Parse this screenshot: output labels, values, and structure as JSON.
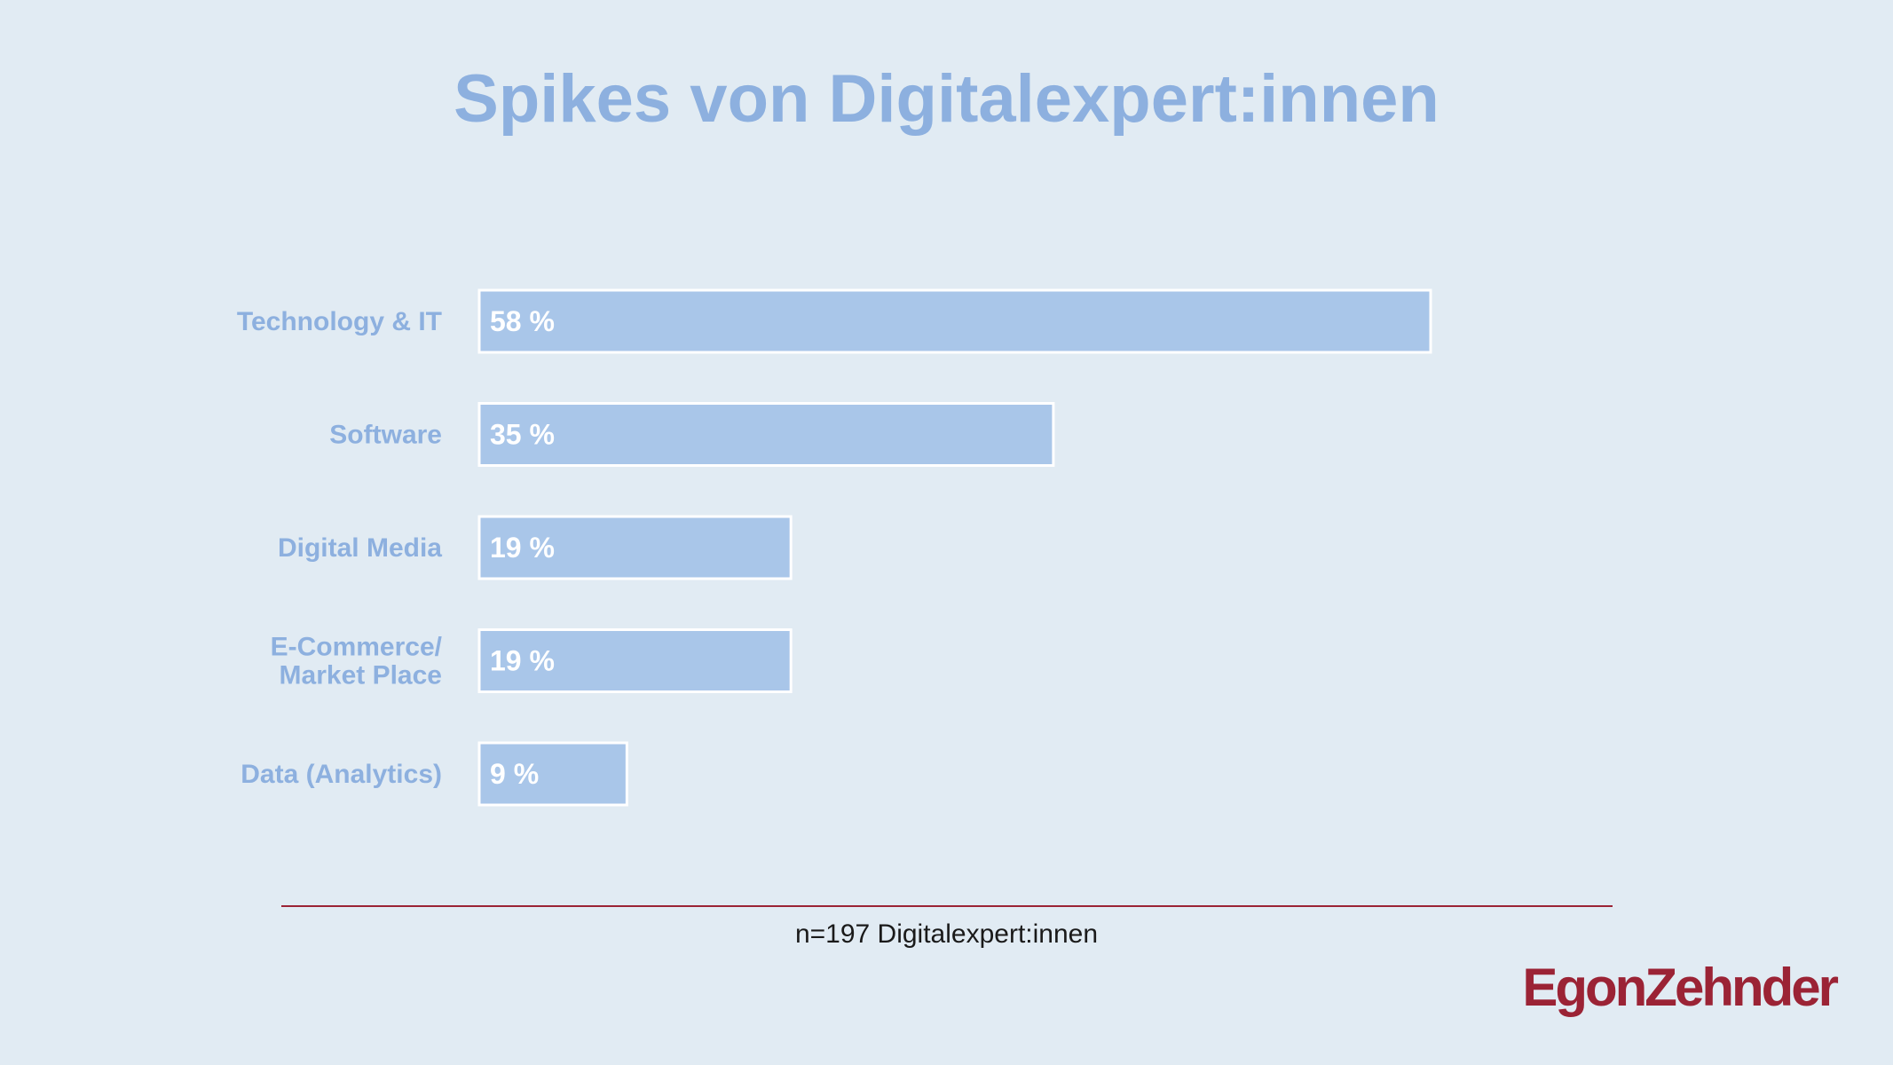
{
  "title": "Spikes von Digitalexpert:innen",
  "note": "n=197 Digitalexpert:innen",
  "logo_text": "EgonZehnder",
  "colors": {
    "background": "#e1ebf3",
    "bar_fill": "#a9c6e9",
    "bar_stroke": "#ffffff",
    "title": "#8db0df",
    "accent": "#9b2335"
  },
  "chart_data": {
    "type": "bar",
    "orientation": "horizontal",
    "title": "Spikes von Digitalexpert:innen",
    "categories": [
      [
        "Technology & IT"
      ],
      [
        "Software"
      ],
      [
        "Digital Media"
      ],
      [
        "E-Commerce/",
        "Market Place"
      ],
      [
        "Data (Analytics)"
      ]
    ],
    "values": [
      58,
      35,
      19,
      19,
      9
    ],
    "value_labels": [
      "58 %",
      "35 %",
      "19 %",
      "19 %",
      "9 %"
    ],
    "unit": "%",
    "xlim": [
      0,
      58
    ],
    "grid": false,
    "legend": "none"
  }
}
